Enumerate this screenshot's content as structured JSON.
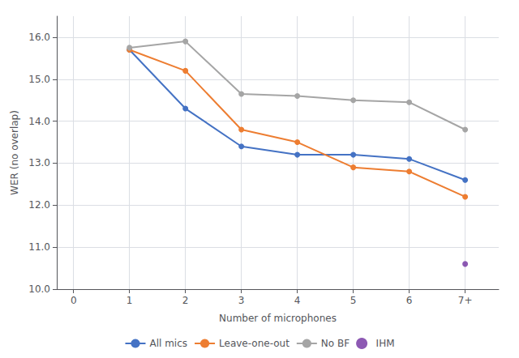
{
  "chart_data": {
    "type": "line",
    "xlabel": "Number of microphones",
    "ylabel": "WER (no overlap)",
    "xlim": [
      -0.3,
      7.6
    ],
    "xticks": [
      0,
      1,
      2,
      3,
      4,
      5,
      6,
      {
        "value": 7,
        "label": "7+"
      }
    ],
    "ylim": [
      10.0,
      16.5
    ],
    "yticks": [
      {
        "value": 10,
        "label": "10.0"
      },
      {
        "value": 11,
        "label": "11.0"
      },
      {
        "value": 12,
        "label": "12.0"
      },
      {
        "value": 13,
        "label": "13.0"
      },
      {
        "value": 14,
        "label": "14.0"
      },
      {
        "value": 15,
        "label": "15.0"
      },
      {
        "value": 16,
        "label": "16.0"
      }
    ],
    "grid": true,
    "legend": "bottom",
    "series": [
      {
        "name": "All mics",
        "color": "#4472C4",
        "marker": "circle",
        "x": [
          1,
          2,
          3,
          4,
          5,
          6,
          7
        ],
        "values": [
          15.7,
          14.3,
          13.4,
          13.2,
          13.2,
          13.1,
          12.6
        ]
      },
      {
        "name": "Leave-one-out",
        "color": "#ED7D31",
        "marker": "circle",
        "x": [
          1,
          2,
          3,
          4,
          5,
          6,
          7
        ],
        "values": [
          15.7,
          15.2,
          13.8,
          13.5,
          12.9,
          12.8,
          12.2
        ]
      },
      {
        "name": "No BF",
        "color": "#A5A5A5",
        "marker": "circle",
        "x": [
          1,
          2,
          3,
          4,
          5,
          6,
          7
        ],
        "values": [
          15.75,
          15.9,
          14.65,
          14.6,
          14.5,
          14.45,
          13.8
        ]
      },
      {
        "name": "IHM",
        "type": "scatter",
        "color": "#7030A0",
        "marker": "circle",
        "x": [
          7
        ],
        "values": [
          10.6
        ]
      }
    ]
  }
}
